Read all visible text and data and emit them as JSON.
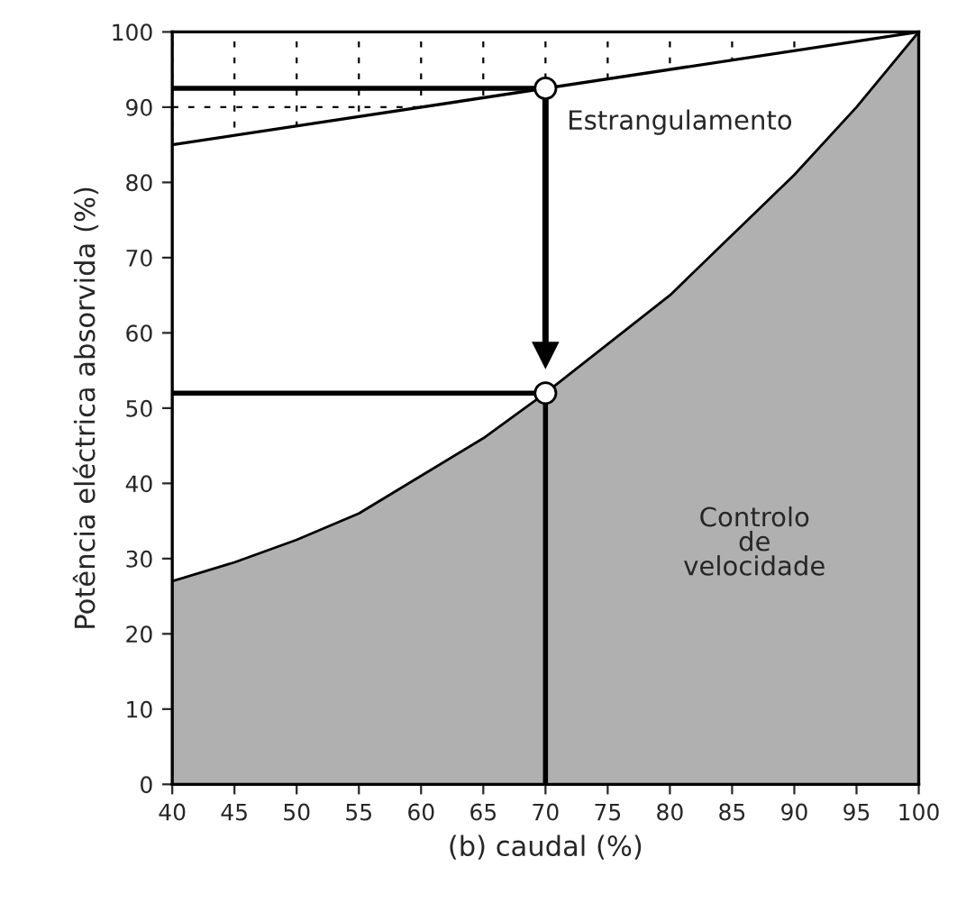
{
  "chart_data": {
    "type": "area",
    "xlabel": "(b) caudal (%)",
    "ylabel": "Potência eléctrica absorvida (%)",
    "xlim": [
      40,
      100
    ],
    "ylim": [
      0,
      100
    ],
    "xticks": [
      40,
      45,
      50,
      55,
      60,
      65,
      70,
      75,
      80,
      85,
      90,
      95,
      100
    ],
    "yticks": [
      0,
      10,
      20,
      30,
      40,
      50,
      60,
      70,
      80,
      90,
      100
    ],
    "grid": true,
    "series": [
      {
        "color": "#b0b0b0",
        "x": [
          40,
          45,
          50,
          55,
          60,
          65,
          70,
          75,
          80,
          85,
          90,
          95,
          100
        ],
        "values": [
          27,
          29.5,
          32.5,
          36,
          41,
          46,
          52,
          58.5,
          65,
          73,
          81,
          90,
          100
        ]
      },
      {
        "type": "line",
        "color": "#000000",
        "x": [
          40,
          100
        ],
        "values": [
          85,
          100
        ]
      },
      {
        "type": "line",
        "color": "#000000",
        "x": [
          40,
          70
        ],
        "values": [
          92.5,
          92.5
        ]
      },
      {
        "type": "line",
        "color": "#000000",
        "x": [
          40,
          70
        ],
        "values": [
          52,
          52
        ]
      },
      {
        "type": "line",
        "color": "#000000",
        "x": [
          70,
          70
        ],
        "values": [
          52,
          0
        ]
      },
      {
        "type": "line",
        "color": "#000000",
        "x": [
          70,
          70
        ],
        "values": [
          92.5,
          57
        ],
        "marker": "triangle"
      },
      {
        "type": "scatter",
        "color": "#ffffff",
        "marker": "circle",
        "x": [
          70,
          70
        ],
        "values": [
          92.5,
          52
        ]
      }
    ],
    "annotations": [
      "Estrangulamento",
      "Controlo\nde\nvelocidade"
    ]
  }
}
